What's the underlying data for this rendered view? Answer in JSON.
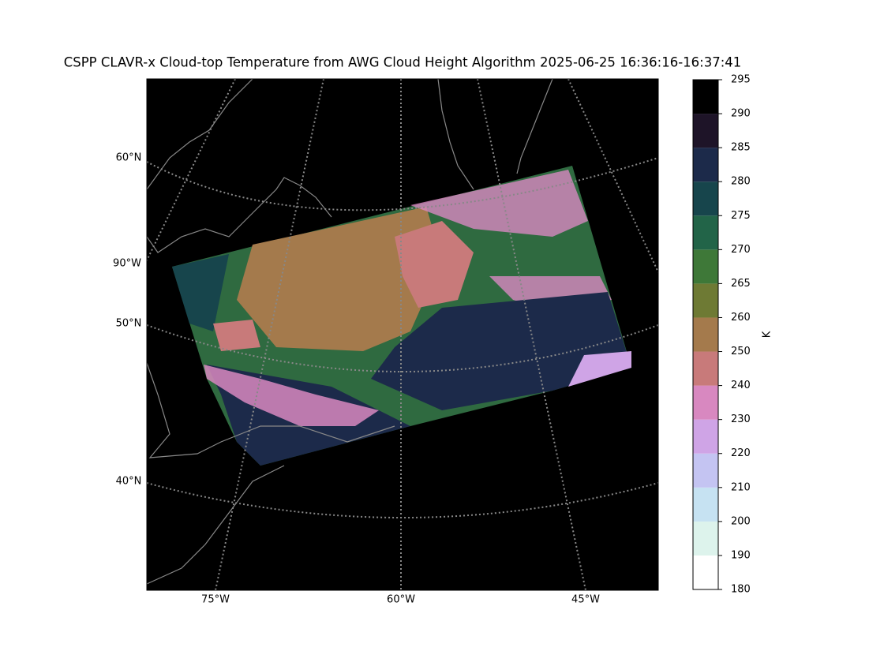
{
  "title": "CSPP CLAVR-x Cloud-top Temperature from AWG Cloud Height Algorithm 2025-06-25 16:36:16-16:37:41",
  "map": {
    "lat_labels": [
      "60°N",
      "50°N",
      "40°N"
    ],
    "lon_left_labels": [
      "90°W"
    ],
    "lon_bottom_labels": [
      "75°W",
      "60°W",
      "45°W"
    ]
  },
  "colorbar": {
    "label": "K",
    "ticks": [
      180,
      190,
      200,
      210,
      220,
      230,
      240,
      250,
      260,
      265,
      270,
      275,
      280,
      285,
      290,
      295
    ],
    "colors": [
      "#ffffff",
      "#ddf3ec",
      "#c6e2f2",
      "#c4c4f2",
      "#cfa4e6",
      "#d888c0",
      "#c87a7a",
      "#a47a4c",
      "#6e7a34",
      "#3e7838",
      "#226448",
      "#17454c",
      "#1c2a4a",
      "#1e1428",
      "#000000"
    ]
  }
}
